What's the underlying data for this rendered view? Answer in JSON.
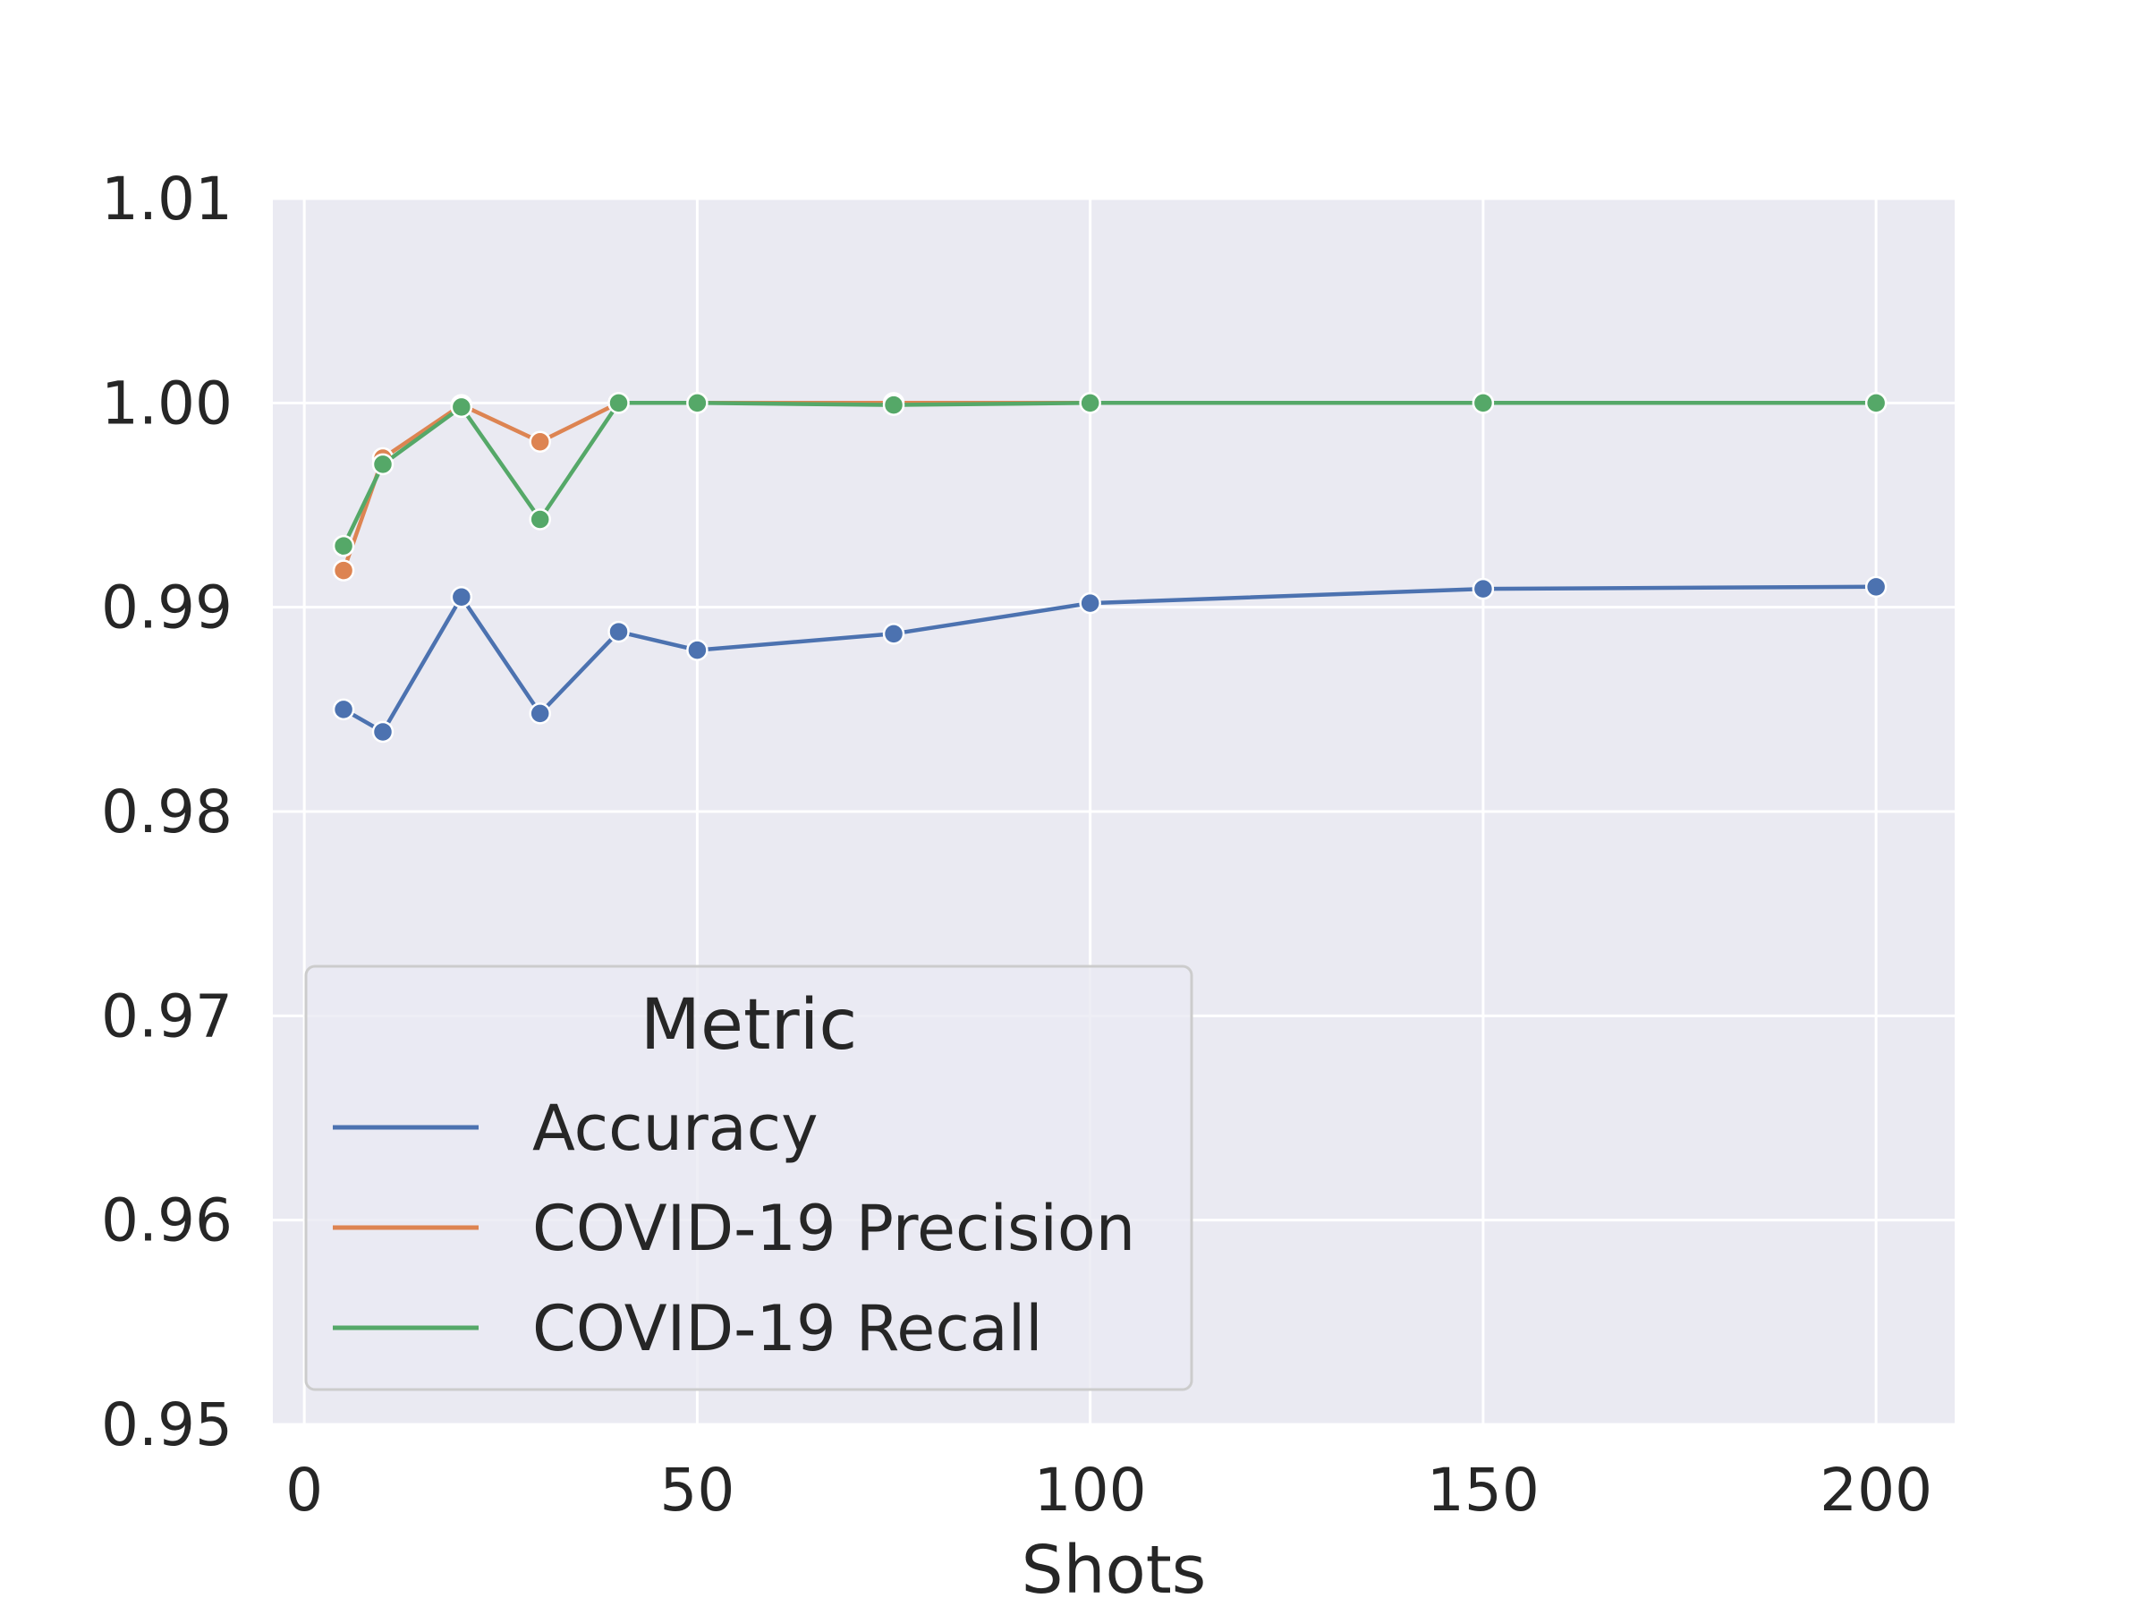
{
  "chart_data": {
    "type": "line",
    "title": "",
    "xlabel": "Shots",
    "ylabel": "",
    "xlim": [
      -4,
      210
    ],
    "ylim": [
      0.95,
      1.01
    ],
    "x_ticks": [
      0,
      50,
      100,
      150,
      200
    ],
    "x_tick_labels": [
      "0",
      "50",
      "100",
      "150",
      "200"
    ],
    "y_ticks": [
      0.95,
      0.96,
      0.97,
      0.98,
      0.99,
      1.0,
      1.01
    ],
    "y_tick_labels": [
      "0.95",
      "0.96",
      "0.97",
      "0.98",
      "0.99",
      "1.00",
      "1.01"
    ],
    "grid": true,
    "legend": {
      "title": "Metric",
      "placement": "lower-left"
    },
    "x": [
      5,
      10,
      20,
      30,
      40,
      50,
      75,
      100,
      150,
      200
    ],
    "series": [
      {
        "name": "Accuracy",
        "color": "#4c72b0",
        "values": [
          0.985,
          0.9839,
          0.9905,
          0.9848,
          0.9888,
          0.9879,
          0.9887,
          0.9902,
          0.9909,
          0.991
        ]
      },
      {
        "name": "COVID-19 Precision",
        "color": "#dd8452",
        "values": [
          0.9918,
          0.9973,
          0.9999,
          0.9981,
          1.0,
          1.0,
          1.0,
          1.0,
          1.0,
          1.0
        ]
      },
      {
        "name": "COVID-19 Recall",
        "color": "#55a868",
        "values": [
          0.993,
          0.997,
          0.9998,
          0.9943,
          1.0,
          1.0,
          0.9999,
          1.0,
          1.0,
          1.0
        ]
      }
    ],
    "colors": {
      "plot_background": "#eaeaf2",
      "grid": "#ffffff",
      "text": "#262626"
    }
  }
}
